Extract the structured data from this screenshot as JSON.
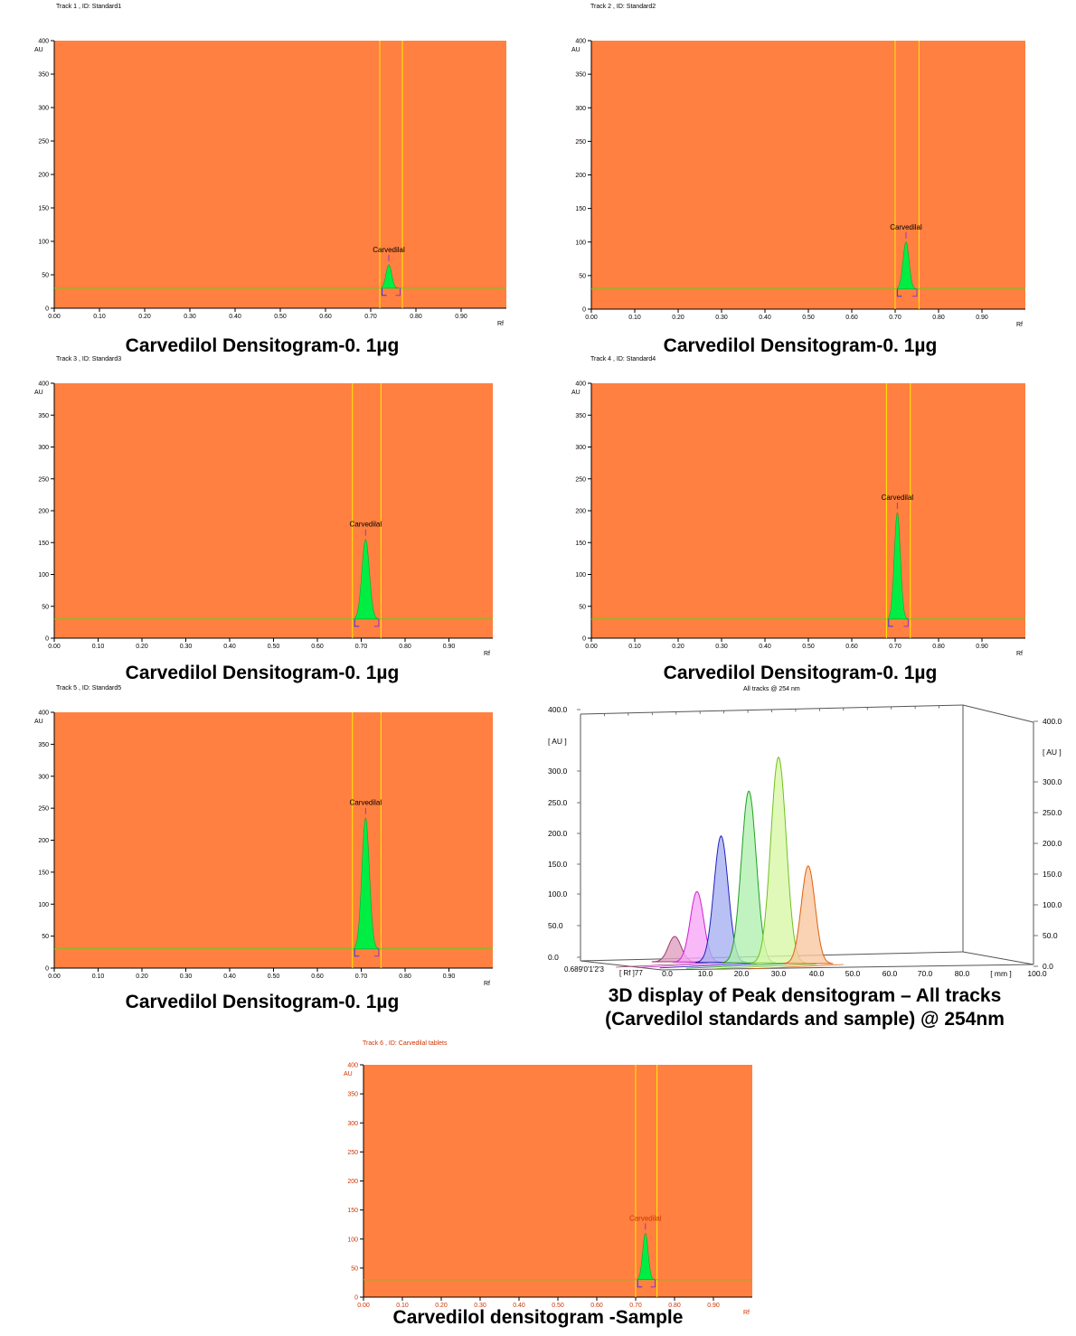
{
  "colors": {
    "plot_bg": "#ff8040",
    "peak_fill": "#00ee44",
    "baseline": "#66cc22",
    "window_lines": "#ffee00",
    "peak_marker": "#9933cc",
    "bracket": "#3333ff",
    "sample_tick_text": "#cc3300"
  },
  "chart_data": [
    {
      "type": "area",
      "track_title": "Track  1 , ID: Standard1",
      "ylabel": "AU",
      "xlabel": "Rf",
      "ylim": [
        0,
        400
      ],
      "xlim": [
        0,
        1.0
      ],
      "yticks": [
        "0",
        "50",
        "100",
        "150",
        "200",
        "250",
        "300",
        "350",
        "400"
      ],
      "xticks": [
        "0.00",
        "0.10",
        "0.20",
        "0.30",
        "0.40",
        "0.50",
        "0.60",
        "0.70",
        "0.80",
        "0.90"
      ],
      "baseline": 30,
      "window": [
        0.72,
        0.77
      ],
      "peak": {
        "label": "Carvedilal",
        "rf": 0.74,
        "height": 65,
        "start": 0.725,
        "end": 0.765
      },
      "caption": "Carvedilol Densitogram-0. 1µg"
    },
    {
      "type": "area",
      "track_title": "Track  2 , ID: Standard2",
      "ylabel": "AU",
      "xlabel": "Rf",
      "ylim": [
        0,
        400
      ],
      "xlim": [
        0,
        1.0
      ],
      "yticks": [
        "0",
        "50",
        "100",
        "150",
        "200",
        "250",
        "300",
        "350",
        "400"
      ],
      "xticks": [
        "0.00",
        "0.10",
        "0.20",
        "0.30",
        "0.40",
        "0.50",
        "0.60",
        "0.70",
        "0.80",
        "0.90"
      ],
      "baseline": 30,
      "window": [
        0.7,
        0.755
      ],
      "peak": {
        "label": "Carvedilal",
        "rf": 0.725,
        "height": 100,
        "start": 0.705,
        "end": 0.75
      },
      "caption": "Carvedilol Densitogram-0. 1µg"
    },
    {
      "type": "area",
      "track_title": "Track  3 , ID: Standard3",
      "ylabel": "AU",
      "xlabel": "Rf",
      "ylim": [
        0,
        400
      ],
      "xlim": [
        0,
        1.0
      ],
      "yticks": [
        "0",
        "50",
        "100",
        "150",
        "200",
        "250",
        "300",
        "350",
        "400"
      ],
      "xticks": [
        "0.00",
        "0.10",
        "0.20",
        "0.30",
        "0.40",
        "0.50",
        "0.60",
        "0.70",
        "0.80",
        "0.90"
      ],
      "baseline": 30,
      "window": [
        0.68,
        0.745
      ],
      "peak": {
        "label": "Carvedilal",
        "rf": 0.71,
        "height": 155,
        "start": 0.685,
        "end": 0.74
      },
      "caption": "Carvedilol Densitogram-0. 1µg"
    },
    {
      "type": "area",
      "track_title": "Track  4 , ID: Standard4",
      "ylabel": "AU",
      "xlabel": "Rf",
      "ylim": [
        0,
        400
      ],
      "xlim": [
        0,
        1.0
      ],
      "yticks": [
        "0",
        "50",
        "100",
        "150",
        "200",
        "250",
        "300",
        "350",
        "400"
      ],
      "xticks": [
        "0.00",
        "0.10",
        "0.20",
        "0.30",
        "0.40",
        "0.50",
        "0.60",
        "0.70",
        "0.80",
        "0.90"
      ],
      "baseline": 30,
      "window": [
        0.68,
        0.735
      ],
      "peak": {
        "label": "Carvedilal",
        "rf": 0.705,
        "height": 197,
        "start": 0.685,
        "end": 0.73
      },
      "caption": "Carvedilol Densitogram-0. 1µg"
    },
    {
      "type": "area",
      "track_title": "Track  5 , ID: Standard5",
      "ylabel": "AU",
      "xlabel": "Rf",
      "ylim": [
        0,
        400
      ],
      "xlim": [
        0,
        1.0
      ],
      "yticks": [
        "0",
        "50",
        "100",
        "150",
        "200",
        "250",
        "300",
        "350",
        "400"
      ],
      "xticks": [
        "0.00",
        "0.10",
        "0.20",
        "0.30",
        "0.40",
        "0.50",
        "0.60",
        "0.70",
        "0.80",
        "0.90"
      ],
      "baseline": 30,
      "window": [
        0.68,
        0.745
      ],
      "peak": {
        "label": "Carvedilal",
        "rf": 0.71,
        "height": 235,
        "start": 0.685,
        "end": 0.74
      },
      "caption": "Carvedilol Densitogram-0. 1µg"
    },
    {
      "type": "area",
      "title": "All tracks @ 254 nm",
      "ylabel": "[ AU ]",
      "xlabel": "[ mm ]",
      "zlabel": "[ Rf ]",
      "yticks": [
        "0.0",
        "50.0",
        "100.0",
        "150.0",
        "200.0",
        "250.0",
        "300.0",
        "400.0"
      ],
      "xticks": [
        "0.0",
        "10.0",
        "20.0",
        "30.0",
        "40.0",
        "50.0",
        "60.0",
        "70.0",
        "80.0",
        "100.0"
      ],
      "rf_ticks": "0.68",
      "rf_end": "77",
      "series": [
        {
          "x": 2.0,
          "height": 28,
          "color": "#9b3a6b",
          "fill": "#e0a0c0"
        },
        {
          "x": 8.0,
          "height": 78,
          "color": "#d020d0",
          "fill": "#f8a8f8"
        },
        {
          "x": 14.5,
          "height": 140,
          "color": "#2020c0",
          "fill": "#a8b0f0"
        },
        {
          "x": 22.0,
          "height": 190,
          "color": "#20a020",
          "fill": "#b0f0b0"
        },
        {
          "x": 30.0,
          "height": 228,
          "color": "#70c020",
          "fill": "#d8f8a8"
        },
        {
          "x": 38.0,
          "height": 108,
          "color": "#e06010",
          "fill": "#f8c8a0"
        }
      ],
      "caption_line1": "3D display of Peak densitogram – All tracks",
      "caption_line2": "(Carvedilol standards and sample) @ 254nm"
    },
    {
      "type": "area",
      "track_title": "Track  6 , ID: Carvedilal tablets",
      "ylabel": "AU",
      "xlabel": "Rf",
      "ylim": [
        0,
        400
      ],
      "xlim": [
        0,
        1.0
      ],
      "yticks": [
        "0",
        "50",
        "100",
        "150",
        "200",
        "250",
        "300",
        "350",
        "400"
      ],
      "xticks": [
        "0.00",
        "0.10",
        "0.20",
        "0.30",
        "0.40",
        "0.50",
        "0.60",
        "0.70",
        "0.80",
        "0.90"
      ],
      "baseline": 30,
      "window": [
        0.7,
        0.755
      ],
      "peak": {
        "label": "Carvedilal",
        "rf": 0.725,
        "height": 110,
        "start": 0.705,
        "end": 0.75
      },
      "caption": "Carvedilol densitogram -Sample"
    }
  ]
}
